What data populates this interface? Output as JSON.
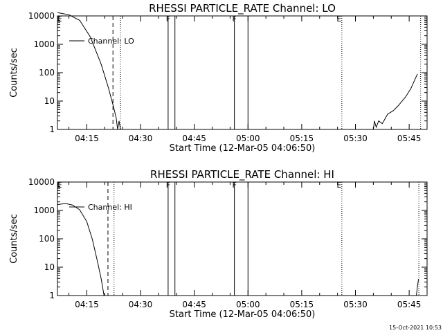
{
  "footer": {
    "timestamp": "15-Oct-2021 10:53"
  },
  "chart_data": [
    {
      "type": "line",
      "title": "RHESSI PARTICLE_RATE Channel: LO",
      "xlabel": "Start Time (12-Mar-05 04:06:50)",
      "ylabel": "Counts/sec",
      "y_scale": "log",
      "ylim": [
        1,
        10000
      ],
      "xlim_min": [
        246.8,
        350
      ],
      "ytick_labels": [
        "1",
        "10",
        "100",
        "1000",
        "10000"
      ],
      "ytick_values": [
        1,
        10,
        100,
        1000,
        10000
      ],
      "xtick_labels": [
        "04:15",
        "04:30",
        "04:45",
        "05:00",
        "05:15",
        "05:30",
        "05:45"
      ],
      "xtick_values": [
        255,
        270,
        285,
        300,
        315,
        330,
        345
      ],
      "legend": {
        "label": "Channel: LO",
        "placement": "top-left"
      },
      "series": [
        {
          "name": "Channel: LO",
          "segments": [
            [
              [
                246.8,
                13000
              ],
              [
                250.0,
                11000
              ],
              [
                253.0,
                7000
              ],
              [
                256.0,
                1800
              ],
              [
                259.0,
                200
              ],
              [
                261.0,
                30
              ],
              [
                262.5,
                6
              ],
              [
                263.2,
                2.5
              ],
              [
                263.6,
                1
              ],
              [
                264.0,
                2
              ],
              [
                264.4,
                1
              ]
            ],
            [
              [
                335.0,
                1
              ],
              [
                335.3,
                2
              ],
              [
                335.8,
                1.2
              ],
              [
                336.5,
                2
              ],
              [
                337.5,
                1.6
              ],
              [
                338.2,
                2.3
              ],
              [
                339.0,
                3.5
              ],
              [
                340.5,
                4.5
              ],
              [
                342.0,
                7
              ],
              [
                344.0,
                14
              ],
              [
                345.5,
                28
              ],
              [
                347.3,
                90
              ]
            ]
          ]
        }
      ],
      "vertical_markers": [
        {
          "label": "E",
          "x": 247.4,
          "style": "solid",
          "kind": "letter"
        },
        {
          "x": 262.3,
          "style": "dashed",
          "kind": "line"
        },
        {
          "x": 264.4,
          "style": "dotted",
          "kind": "line"
        },
        {
          "label": "F",
          "x": 277.7,
          "style": "solid",
          "kind": "bracket-open"
        },
        {
          "x": 279.6,
          "style": "solid",
          "kind": "bracket-close"
        },
        {
          "label": "F",
          "x": 296.2,
          "style": "solid",
          "kind": "bracket-open"
        },
        {
          "x": 300.0,
          "style": "solid",
          "kind": "bracket-close"
        },
        {
          "label": "E",
          "x": 326.2,
          "style": "dotted",
          "kind": "line"
        },
        {
          "x": 348.2,
          "style": "dotted",
          "kind": "line"
        }
      ]
    },
    {
      "type": "line",
      "title": "RHESSI PARTICLE_RATE Channel: HI",
      "xlabel": "Start Time (12-Mar-05 04:06:50)",
      "ylabel": "Counts/sec",
      "y_scale": "log",
      "ylim": [
        1,
        10000
      ],
      "xlim_min": [
        246.8,
        350
      ],
      "ytick_labels": [
        "1",
        "10",
        "100",
        "1000",
        "10000"
      ],
      "ytick_values": [
        1,
        10,
        100,
        1000,
        10000
      ],
      "xtick_labels": [
        "04:15",
        "04:30",
        "04:45",
        "05:00",
        "05:15",
        "05:30",
        "05:45"
      ],
      "xtick_values": [
        255,
        270,
        285,
        300,
        315,
        330,
        345
      ],
      "legend": {
        "label": "Channel: HI",
        "placement": "top-left"
      },
      "series": [
        {
          "name": "Channel: HI",
          "segments": [
            [
              [
                246.8,
                1600
              ],
              [
                249.0,
                1750
              ],
              [
                251.0,
                1550
              ],
              [
                253.0,
                1050
              ],
              [
                255.0,
                400
              ],
              [
                256.5,
                100
              ],
              [
                257.8,
                20
              ],
              [
                259.0,
                4
              ],
              [
                259.8,
                1
              ]
            ],
            [
              [
                347.0,
                1
              ],
              [
                347.3,
                2
              ],
              [
                347.6,
                3.8
              ]
            ]
          ]
        }
      ],
      "vertical_markers": [
        {
          "label": "E",
          "x": 247.4,
          "style": "solid",
          "kind": "letter"
        },
        {
          "x": 260.9,
          "style": "dashed",
          "kind": "line"
        },
        {
          "x": 262.6,
          "style": "dotted",
          "kind": "line"
        },
        {
          "label": "F",
          "x": 277.7,
          "style": "solid",
          "kind": "bracket-open"
        },
        {
          "x": 279.6,
          "style": "solid",
          "kind": "bracket-close"
        },
        {
          "label": "F",
          "x": 296.2,
          "style": "solid",
          "kind": "bracket-open"
        },
        {
          "x": 300.0,
          "style": "solid",
          "kind": "bracket-close"
        },
        {
          "label": "E",
          "x": 326.2,
          "style": "dotted",
          "kind": "line"
        },
        {
          "x": 347.7,
          "style": "dotted",
          "kind": "line"
        }
      ]
    }
  ]
}
